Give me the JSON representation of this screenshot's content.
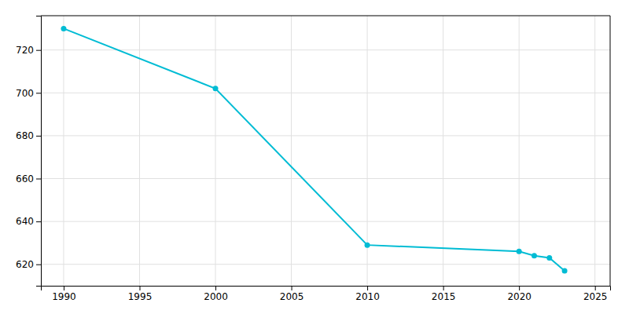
{
  "chart_data": {
    "type": "line",
    "x": [
      1990,
      2000,
      2010,
      2020,
      2021,
      2022,
      2023
    ],
    "values": [
      730,
      702,
      629,
      626,
      624,
      623,
      617
    ],
    "color": "#00BCD4",
    "marker": "circle",
    "xlim": [
      1988.5,
      2026
    ],
    "ylim": [
      610,
      736
    ],
    "xticks": [
      1990,
      1995,
      2000,
      2005,
      2010,
      2015,
      2020,
      2025
    ],
    "yticks": [
      620,
      640,
      660,
      680,
      700,
      720
    ],
    "grid": true
  }
}
